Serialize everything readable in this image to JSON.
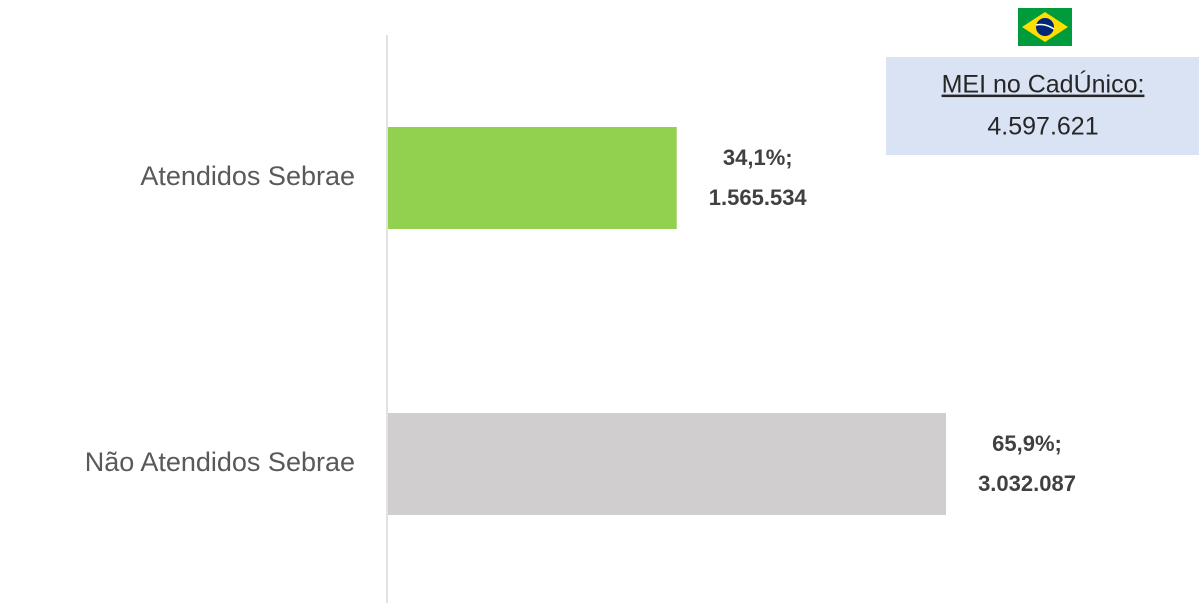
{
  "chart_data": {
    "type": "hbar",
    "categories": [
      "Atendidos Sebrae",
      "Não Atendidos Sebrae"
    ],
    "values": [
      34.1,
      65.9
    ],
    "value_labels": [
      "34,1%;",
      "65,9%;"
    ],
    "counts": [
      1565534,
      3032087
    ],
    "count_labels": [
      "1.565.534",
      "3.032.087"
    ],
    "colors": [
      "#92d050",
      "#d0cece"
    ],
    "annotation": {
      "title": "MEI no CadÚnico:",
      "value": 4597621,
      "label": "4.597.621"
    }
  }
}
